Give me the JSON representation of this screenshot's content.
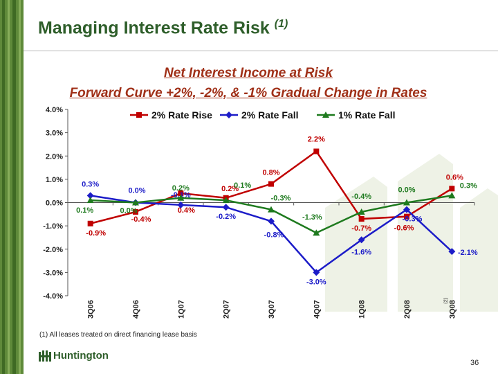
{
  "slide": {
    "title": "Managing Interest Rate Risk",
    "title_note": "(1)",
    "subtitle_1": "Net Interest Income at Risk",
    "subtitle_2": "Forward Curve +2%, -2%, & -1% Gradual Change in Rates",
    "footnote": "(1)  All leases treated on direct financing lease basis",
    "logo_text": "Huntington",
    "page_number": "36"
  },
  "chart_data": {
    "type": "line",
    "title": "",
    "xlabel": "",
    "ylabel": "",
    "categories": [
      "3Q06",
      "4Q06",
      "1Q07",
      "2Q07",
      "3Q07",
      "4Q07",
      "1Q08",
      "2Q08",
      "3Q08"
    ],
    "category_notes": {
      "3Q08": "(2)"
    },
    "ylim": [
      -4.0,
      4.0
    ],
    "yticks": [
      -4.0,
      -3.0,
      -2.0,
      -1.0,
      0.0,
      1.0,
      2.0,
      3.0,
      4.0
    ],
    "ytick_labels": [
      "-4.0%",
      "-3.0%",
      "-2.0%",
      "-1.0%",
      "0.0%",
      "1.0%",
      "2.0%",
      "3.0%",
      "4.0%"
    ],
    "legend_position": "top",
    "grid": false,
    "series": [
      {
        "name": "2% Rate Rise",
        "color": "#c00000",
        "marker": "square",
        "values": [
          -0.9,
          -0.4,
          0.4,
          0.2,
          0.8,
          2.2,
          -0.7,
          -0.6,
          0.6
        ],
        "labels": [
          "-0.9%",
          "-0.4%",
          "0.4%",
          "0.2%",
          "0.8%",
          "2.2%",
          "-0.7%",
          "-0.6%",
          "0.6%"
        ]
      },
      {
        "name": "2% Rate Fall",
        "color": "#1c1cc8",
        "marker": "diamond",
        "values": [
          0.3,
          0.0,
          -0.1,
          -0.2,
          -0.8,
          -3.0,
          -1.6,
          -0.3,
          -2.1
        ],
        "labels": [
          "0.3%",
          "0.0%",
          "-0.1%",
          "-0.2%",
          "-0.8%",
          "-3.0%",
          "-1.6%",
          "-0.3%",
          "-2.1%"
        ]
      },
      {
        "name": "1% Rate Fall",
        "color": "#1e7a1e",
        "marker": "triangle",
        "values": [
          0.1,
          0.0,
          0.2,
          0.1,
          -0.3,
          -1.3,
          -0.4,
          0.0,
          0.3
        ],
        "labels": [
          "0.1%",
          "0.0%",
          "0.2%",
          "0.1%",
          "-0.3%",
          "-1.3%",
          "-0.4%",
          "0.0%",
          "0.3%"
        ]
      }
    ]
  }
}
